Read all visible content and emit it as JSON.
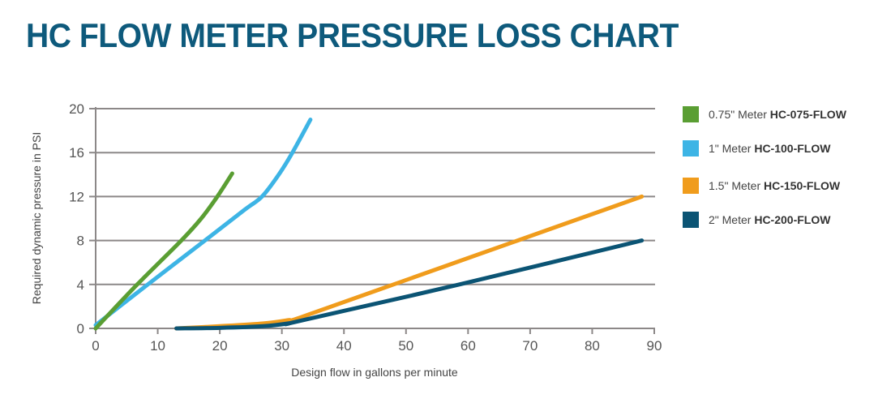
{
  "title": "HC FLOW METER PRESSURE LOSS CHART",
  "chart_data": {
    "type": "line",
    "title": "HC FLOW METER PRESSURE LOSS CHART",
    "xlabel": "Design flow in gallons per minute",
    "ylabel": "Required dynamic pressure in PSI",
    "xlim": [
      0,
      90
    ],
    "ylim": [
      0,
      20
    ],
    "xticks": [
      0,
      10,
      20,
      30,
      40,
      50,
      60,
      70,
      80,
      90
    ],
    "yticks": [
      0,
      4,
      8,
      12,
      16,
      20
    ],
    "grid": "horizontal",
    "legend_position": "right",
    "series": [
      {
        "name": "0.75\" Meter",
        "code": "HC-075-FLOW",
        "color": "#5a9e33",
        "points": [
          [
            0,
            0
          ],
          [
            6.7,
            4
          ],
          [
            13.8,
            8
          ],
          [
            17,
            10
          ],
          [
            19.6,
            12
          ],
          [
            22,
            14.1
          ]
        ]
      },
      {
        "name": "1\" Meter",
        "code": "HC-100-FLOW",
        "color": "#3db4e5",
        "points": [
          [
            0,
            0.3
          ],
          [
            8.4,
            4
          ],
          [
            17.6,
            8
          ],
          [
            24,
            10.8
          ],
          [
            26.8,
            12
          ],
          [
            29.5,
            14
          ],
          [
            31.7,
            16
          ],
          [
            34.6,
            19
          ]
        ]
      },
      {
        "name": "1.5\" Meter",
        "code": "HC-150-FLOW",
        "color": "#f09c1c",
        "points": [
          [
            13,
            0
          ],
          [
            20,
            0.2
          ],
          [
            27,
            0.45
          ],
          [
            31,
            0.75
          ],
          [
            33,
            1.0
          ],
          [
            48,
            4
          ],
          [
            68,
            8
          ],
          [
            88,
            12
          ]
        ]
      },
      {
        "name": "2\" Meter",
        "code": "HC-200-FLOW",
        "color": "#0b5474",
        "points": [
          [
            13,
            0
          ],
          [
            20,
            0.05
          ],
          [
            27,
            0.2
          ],
          [
            31,
            0.45
          ],
          [
            33,
            0.7
          ],
          [
            58.6,
            4
          ],
          [
            88,
            8
          ]
        ]
      }
    ]
  }
}
